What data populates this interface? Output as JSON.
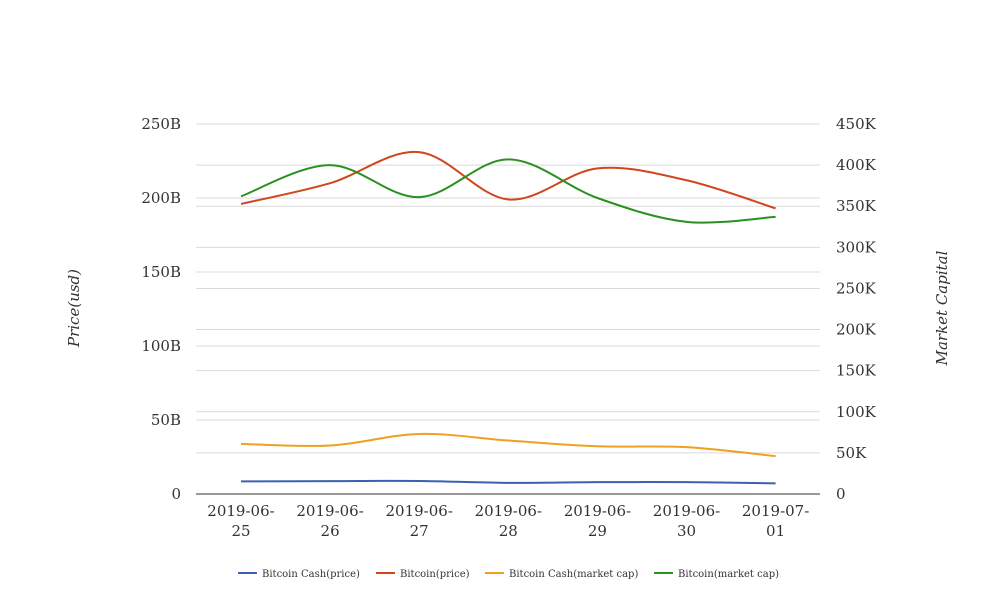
{
  "chart_data": {
    "type": "line",
    "x": [
      "2019-06-25",
      "2019-06-26",
      "2019-06-27",
      "2019-06-28",
      "2019-06-29",
      "2019-06-30",
      "2019-07-01"
    ],
    "x_tick_lines": [
      [
        "2019-06-",
        "25"
      ],
      [
        "2019-06-",
        "26"
      ],
      [
        "2019-06-",
        "27"
      ],
      [
        "2019-06-",
        "28"
      ],
      [
        "2019-06-",
        "29"
      ],
      [
        "2019-06-",
        "30"
      ],
      [
        "2019-07-",
        "01"
      ]
    ],
    "ylabel_left": "Price(usd)",
    "ylabel_right": "Market Capital",
    "ylim_left": [
      0,
      250000000000
    ],
    "ylim_right": [
      0,
      450000
    ],
    "y_ticks_left": [
      {
        "value": 0,
        "label": "0"
      },
      {
        "value": 50000000000,
        "label": "50B"
      },
      {
        "value": 100000000000,
        "label": "100B"
      },
      {
        "value": 150000000000,
        "label": "150B"
      },
      {
        "value": 200000000000,
        "label": "200B"
      },
      {
        "value": 250000000000,
        "label": "250B"
      }
    ],
    "y_ticks_right": [
      {
        "value": 0,
        "label": "0"
      },
      {
        "value": 50000,
        "label": "50K"
      },
      {
        "value": 100000,
        "label": "100K"
      },
      {
        "value": 150000,
        "label": "150K"
      },
      {
        "value": 200000,
        "label": "200K"
      },
      {
        "value": 250000,
        "label": "250K"
      },
      {
        "value": 300000,
        "label": "300K"
      },
      {
        "value": 350000,
        "label": "350K"
      },
      {
        "value": 400000,
        "label": "400K"
      },
      {
        "value": 450000,
        "label": "450K"
      }
    ],
    "grid": true,
    "legend_position": "bottom",
    "series": [
      {
        "name": "Bitcoin Cash(price)",
        "axis": "left",
        "color": "#3a62b0",
        "values": [
          8500000000,
          8700000000,
          8800000000,
          7500000000,
          8000000000,
          8000000000,
          7200000000
        ]
      },
      {
        "name": "Bitcoin(price)",
        "axis": "left",
        "color": "#d0461f",
        "values": [
          196000000000,
          210000000000,
          231000000000,
          199000000000,
          220000000000,
          212000000000,
          193000000000
        ]
      },
      {
        "name": "Bitcoin Cash(market cap)",
        "axis": "right",
        "color": "#f0a020",
        "values": [
          61000,
          59000,
          73000,
          65000,
          58000,
          57000,
          46000
        ]
      },
      {
        "name": "Bitcoin(market cap)",
        "axis": "right",
        "color": "#2a9120",
        "values": [
          362000,
          400000,
          361000,
          407000,
          360000,
          331000,
          337000
        ]
      }
    ]
  }
}
